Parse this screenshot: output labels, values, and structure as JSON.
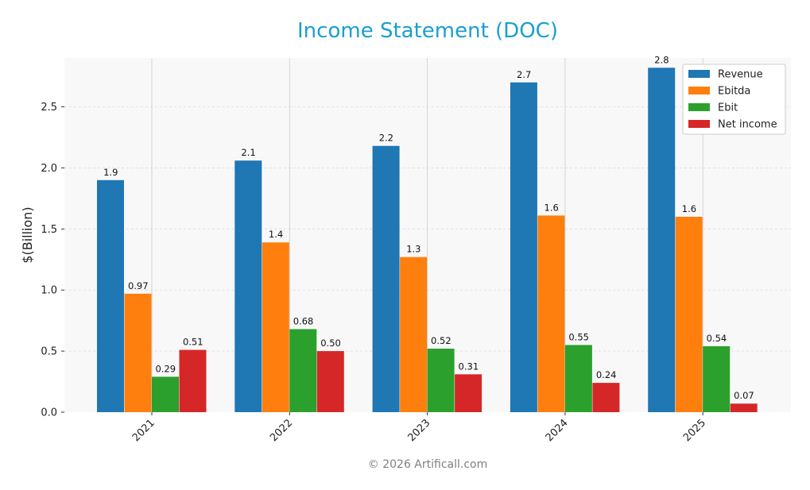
{
  "chart_data": {
    "type": "bar",
    "title": "Income Statement (DOC)",
    "xlabel": "",
    "ylabel": "$(Billion)",
    "categories": [
      "2021",
      "2022",
      "2023",
      "2024",
      "2025"
    ],
    "ylim": [
      0,
      2.9
    ],
    "yticks": [
      0.0,
      0.5,
      1.0,
      1.5,
      2.0,
      2.5
    ],
    "ytick_labels": [
      "0.0",
      "0.5",
      "1.0",
      "1.5",
      "2.0",
      "2.5"
    ],
    "grid": true,
    "legend_position": "top-right",
    "series": [
      {
        "name": "Revenue",
        "color": "#1f77b4",
        "values": [
          1.9,
          2.06,
          2.18,
          2.7,
          2.82
        ],
        "labels": [
          "1.9",
          "2.1",
          "2.2",
          "2.7",
          "2.8"
        ]
      },
      {
        "name": "Ebitda",
        "color": "#ff7f0e",
        "values": [
          0.97,
          1.39,
          1.27,
          1.61,
          1.6
        ],
        "labels": [
          "0.97",
          "1.4",
          "1.3",
          "1.6",
          "1.6"
        ]
      },
      {
        "name": "Ebit",
        "color": "#2ca02c",
        "values": [
          0.29,
          0.68,
          0.52,
          0.55,
          0.54
        ],
        "labels": [
          "0.29",
          "0.68",
          "0.52",
          "0.55",
          "0.54"
        ]
      },
      {
        "name": "Net income",
        "color": "#d62728",
        "values": [
          0.51,
          0.5,
          0.31,
          0.24,
          0.07
        ],
        "labels": [
          "0.51",
          "0.50",
          "0.31",
          "0.24",
          "0.07"
        ]
      }
    ]
  },
  "footer": "© 2026 Artificall.com"
}
